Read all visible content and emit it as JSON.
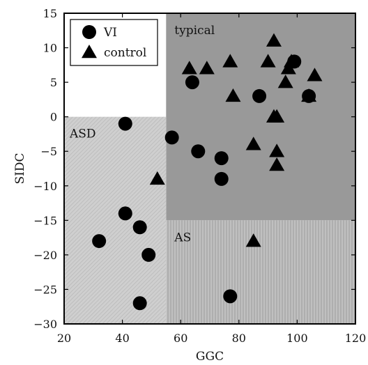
{
  "chart_data": {
    "type": "scatter",
    "xlabel": "GGC",
    "ylabel": "SIDC",
    "xlim": [
      20,
      120
    ],
    "ylim": [
      -30,
      15
    ],
    "xticks": [
      20,
      40,
      60,
      80,
      100,
      120
    ],
    "yticks": [
      15,
      10,
      5,
      0,
      -5,
      -10,
      -15,
      -20,
      -25,
      -30
    ],
    "legend_position": "top-left",
    "regions": [
      {
        "name": "typical",
        "label": "typical",
        "x": [
          55,
          120
        ],
        "y": [
          -15,
          15
        ],
        "color": "#999999",
        "fill": "solid"
      },
      {
        "name": "ASD",
        "label": "ASD",
        "x": [
          20,
          55
        ],
        "y": [
          -30,
          0
        ],
        "color": "#c6c6c6",
        "fill": "diagonal-hatch"
      },
      {
        "name": "AS",
        "label": "AS",
        "x": [
          55,
          120
        ],
        "y": [
          -30,
          -15
        ],
        "color": "#b4b4b4",
        "fill": "vertical-hatch"
      }
    ],
    "series": [
      {
        "name": "VI",
        "marker": "circle",
        "points": [
          {
            "x": 64.0,
            "y": 5.0
          },
          {
            "x": 87.0,
            "y": 3.0
          },
          {
            "x": 99.0,
            "y": 8.0
          },
          {
            "x": 104.0,
            "y": 3.0
          },
          {
            "x": 41.0,
            "y": -1.0
          },
          {
            "x": 57.0,
            "y": -3.0
          },
          {
            "x": 66.0,
            "y": -5.0
          },
          {
            "x": 74.0,
            "y": -6.0
          },
          {
            "x": 74.0,
            "y": -9.0
          },
          {
            "x": 41.0,
            "y": -14.0
          },
          {
            "x": 46.0,
            "y": -16.0
          },
          {
            "x": 32.0,
            "y": -18.0
          },
          {
            "x": 49.0,
            "y": -20.0
          },
          {
            "x": 77.0,
            "y": -26.0
          },
          {
            "x": 46.0,
            "y": -27.0
          }
        ]
      },
      {
        "name": "control",
        "marker": "triangle",
        "points": [
          {
            "x": 92.0,
            "y": 11.0
          },
          {
            "x": 63.0,
            "y": 7.0
          },
          {
            "x": 69.0,
            "y": 7.0
          },
          {
            "x": 77.0,
            "y": 8.0
          },
          {
            "x": 90.0,
            "y": 8.0
          },
          {
            "x": 98.0,
            "y": 8.0
          },
          {
            "x": 97.0,
            "y": 7.0
          },
          {
            "x": 106.0,
            "y": 6.0
          },
          {
            "x": 96.0,
            "y": 5.0
          },
          {
            "x": 78.0,
            "y": 3.0
          },
          {
            "x": 104.0,
            "y": 3.0
          },
          {
            "x": 92.0,
            "y": 0.0
          },
          {
            "x": 93.0,
            "y": 0.0
          },
          {
            "x": 85.0,
            "y": -4.0
          },
          {
            "x": 93.0,
            "y": -5.0
          },
          {
            "x": 93.0,
            "y": -7.0
          },
          {
            "x": 52.0,
            "y": -9.0
          },
          {
            "x": 85.0,
            "y": -18.0
          }
        ]
      }
    ]
  }
}
